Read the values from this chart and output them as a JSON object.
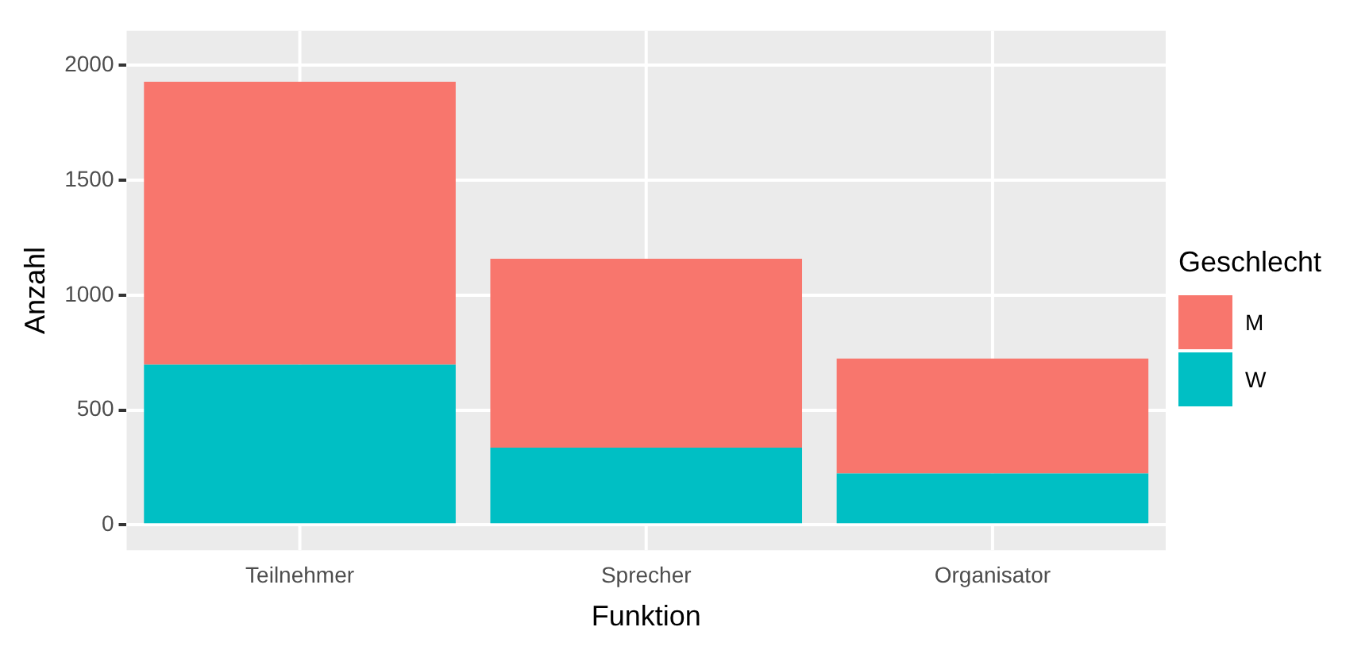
{
  "chart_data": {
    "type": "bar",
    "stacked": true,
    "xlabel": "Funktion",
    "ylabel": "Anzahl",
    "legend_title": "Geschlecht",
    "legend": "right",
    "grid": true,
    "categories": [
      "Teilnehmer",
      "Sprecher",
      "Organisator"
    ],
    "series": [
      {
        "name": "W",
        "color": "#00bfc4",
        "values": [
          697,
          336,
          224
        ]
      },
      {
        "name": "M",
        "color": "#f8766d",
        "values": [
          1231,
          822,
          500
        ]
      }
    ],
    "ylim": [
      -110,
      2150
    ],
    "yticks": [
      0,
      500,
      1000,
      1500,
      2000
    ]
  }
}
